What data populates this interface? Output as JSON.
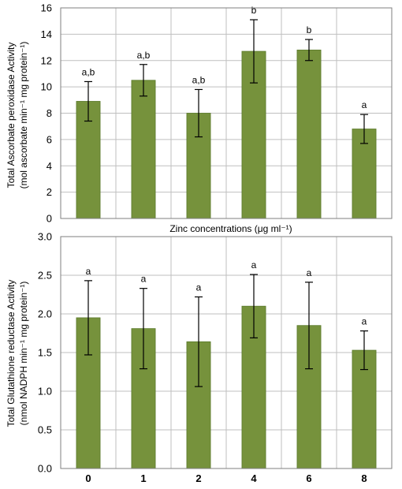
{
  "chart_data": [
    {
      "type": "bar",
      "categories": [
        "0",
        "1",
        "2",
        "4",
        "6",
        "8"
      ],
      "values": [
        8.9,
        10.5,
        8.0,
        12.7,
        12.8,
        6.8
      ],
      "errors": [
        1.5,
        1.2,
        1.8,
        2.4,
        0.8,
        1.1
      ],
      "significance": [
        "a,b",
        "a,b",
        "a,b",
        "b",
        "b",
        "a"
      ],
      "ylabel_line1": "Total Ascorbate peroxidase Activity",
      "ylabel_line2": "(mol ascorbate min⁻¹ mg protein⁻¹)",
      "xlabel": "Zinc concentrations (μg ml⁻¹)",
      "ylim": [
        0,
        16
      ],
      "yticks": [
        "0",
        "2",
        "4",
        "6",
        "8",
        "10",
        "12",
        "14",
        "16"
      ],
      "grid": true,
      "bar_color": "#76923c"
    },
    {
      "type": "bar",
      "categories": [
        "0",
        "1",
        "2",
        "4",
        "6",
        "8"
      ],
      "values": [
        1.95,
        1.81,
        1.64,
        2.1,
        1.85,
        1.53
      ],
      "errors": [
        0.48,
        0.52,
        0.58,
        0.41,
        0.56,
        0.25
      ],
      "significance": [
        "a",
        "a",
        "a",
        "a",
        "a",
        "a"
      ],
      "ylabel_line1": "Total Glutathione reductase Activity",
      "ylabel_line2": "(nmol NADPH min⁻¹ mg protein⁻¹)",
      "ylim": [
        0,
        3
      ],
      "yticks": [
        "0.0",
        "0.5",
        "1.0",
        "1.5",
        "2.0",
        "2.5",
        "3.0"
      ],
      "xticks": [
        "0",
        "1",
        "2",
        "4",
        "6",
        "8"
      ],
      "grid": true,
      "bar_color": "#76923c"
    }
  ]
}
